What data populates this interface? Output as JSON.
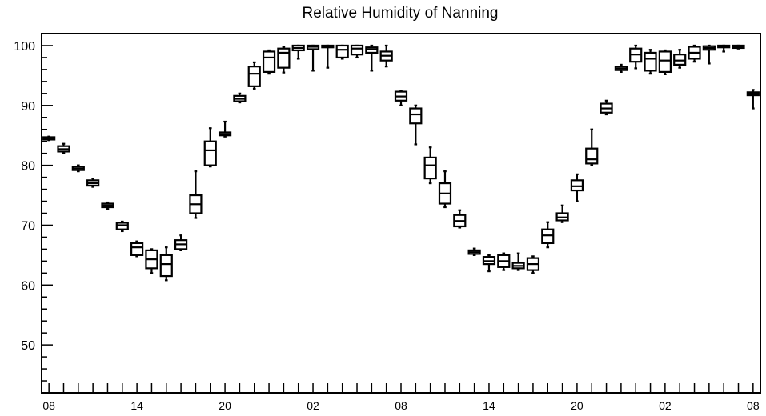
{
  "chart_data": {
    "type": "boxplot",
    "title": "Relative Humidity of Nanning",
    "xlabel": "",
    "ylabel": "",
    "ylim": [
      42,
      102
    ],
    "yticks": [
      50,
      60,
      70,
      80,
      90,
      100
    ],
    "xticklabels": [
      "08",
      "14",
      "20",
      "02",
      "08",
      "14",
      "20",
      "02",
      "08"
    ],
    "xtick_hours": [
      0,
      6,
      12,
      18,
      24,
      30,
      36,
      42,
      48
    ],
    "hour_range": [
      -0.5,
      48.5
    ],
    "grid": false,
    "legend": "none",
    "series": [
      {
        "hour": 0,
        "min": 84.2,
        "q1": 84.3,
        "median": 84.5,
        "q3": 84.7,
        "max": 84.8
      },
      {
        "hour": 1,
        "min": 82.0,
        "q1": 82.3,
        "median": 82.7,
        "q3": 83.2,
        "max": 83.6
      },
      {
        "hour": 2,
        "min": 79.0,
        "q1": 79.2,
        "median": 79.5,
        "q3": 79.8,
        "max": 80.0
      },
      {
        "hour": 3,
        "min": 76.4,
        "q1": 76.6,
        "median": 77.0,
        "q3": 77.5,
        "max": 77.8
      },
      {
        "hour": 4,
        "min": 72.7,
        "q1": 73.0,
        "median": 73.3,
        "q3": 73.6,
        "max": 73.8
      },
      {
        "hour": 5,
        "min": 69.0,
        "q1": 69.3,
        "median": 70.0,
        "q3": 70.4,
        "max": 70.6
      },
      {
        "hour": 6,
        "min": 64.8,
        "q1": 65.0,
        "median": 66.3,
        "q3": 67.0,
        "max": 67.3
      },
      {
        "hour": 7,
        "min": 62.0,
        "q1": 62.8,
        "median": 64.3,
        "q3": 65.8,
        "max": 66.0
      },
      {
        "hour": 8,
        "min": 60.8,
        "q1": 61.5,
        "median": 63.5,
        "q3": 65.0,
        "max": 66.3
      },
      {
        "hour": 9,
        "min": 65.8,
        "q1": 66.0,
        "median": 66.8,
        "q3": 67.5,
        "max": 68.3
      },
      {
        "hour": 10,
        "min": 71.2,
        "q1": 72.0,
        "median": 73.5,
        "q3": 75.0,
        "max": 79.0
      },
      {
        "hour": 11,
        "min": 79.8,
        "q1": 80.0,
        "median": 82.5,
        "q3": 84.0,
        "max": 86.2
      },
      {
        "hour": 12,
        "min": 84.8,
        "q1": 85.0,
        "median": 85.2,
        "q3": 85.5,
        "max": 87.3
      },
      {
        "hour": 13,
        "min": 90.5,
        "q1": 90.7,
        "median": 91.1,
        "q3": 91.6,
        "max": 92.0
      },
      {
        "hour": 14,
        "min": 92.8,
        "q1": 93.2,
        "median": 95.3,
        "q3": 96.5,
        "max": 97.2
      },
      {
        "hour": 15,
        "min": 95.3,
        "q1": 95.6,
        "median": 98.0,
        "q3": 99.0,
        "max": 99.2
      },
      {
        "hour": 16,
        "min": 95.5,
        "q1": 96.3,
        "median": 98.8,
        "q3": 99.5,
        "max": 99.8
      },
      {
        "hour": 17,
        "min": 97.8,
        "q1": 99.2,
        "median": 99.6,
        "q3": 100.0,
        "max": 100.0
      },
      {
        "hour": 18,
        "min": 95.8,
        "q1": 99.4,
        "median": 99.8,
        "q3": 100.0,
        "max": 100.0
      },
      {
        "hour": 19,
        "min": 96.3,
        "q1": 99.7,
        "median": 99.9,
        "q3": 100.0,
        "max": 100.0
      },
      {
        "hour": 20,
        "min": 97.8,
        "q1": 98.0,
        "median": 99.3,
        "q3": 100.0,
        "max": 100.0
      },
      {
        "hour": 21,
        "min": 98.0,
        "q1": 98.5,
        "median": 99.5,
        "q3": 100.0,
        "max": 100.0
      },
      {
        "hour": 22,
        "min": 95.8,
        "q1": 98.8,
        "median": 99.4,
        "q3": 99.7,
        "max": 100.0
      },
      {
        "hour": 23,
        "min": 96.5,
        "q1": 97.5,
        "median": 98.3,
        "q3": 99.0,
        "max": 100.0
      },
      {
        "hour": 24,
        "min": 90.0,
        "q1": 90.8,
        "median": 91.5,
        "q3": 92.3,
        "max": 92.5
      },
      {
        "hour": 25,
        "min": 83.5,
        "q1": 87.0,
        "median": 88.5,
        "q3": 89.5,
        "max": 90.0
      },
      {
        "hour": 26,
        "min": 77.0,
        "q1": 77.8,
        "median": 80.0,
        "q3": 81.3,
        "max": 83.0
      },
      {
        "hour": 27,
        "min": 73.0,
        "q1": 73.6,
        "median": 75.3,
        "q3": 77.0,
        "max": 79.0
      },
      {
        "hour": 28,
        "min": 69.6,
        "q1": 69.8,
        "median": 70.7,
        "q3": 71.7,
        "max": 72.5
      },
      {
        "hour": 29,
        "min": 65.0,
        "q1": 65.2,
        "median": 65.5,
        "q3": 65.8,
        "max": 66.1
      },
      {
        "hour": 30,
        "min": 62.3,
        "q1": 63.5,
        "median": 64.0,
        "q3": 64.7,
        "max": 65.0
      },
      {
        "hour": 31,
        "min": 62.5,
        "q1": 63.0,
        "median": 64.0,
        "q3": 65.0,
        "max": 65.3
      },
      {
        "hour": 32,
        "min": 62.5,
        "q1": 62.8,
        "median": 63.2,
        "q3": 63.7,
        "max": 65.3
      },
      {
        "hour": 33,
        "min": 62.0,
        "q1": 62.5,
        "median": 63.5,
        "q3": 64.5,
        "max": 64.8
      },
      {
        "hour": 34,
        "min": 66.3,
        "q1": 67.0,
        "median": 68.3,
        "q3": 69.3,
        "max": 70.5
      },
      {
        "hour": 35,
        "min": 70.5,
        "q1": 70.8,
        "median": 71.3,
        "q3": 72.0,
        "max": 73.3
      },
      {
        "hour": 36,
        "min": 74.0,
        "q1": 75.8,
        "median": 76.5,
        "q3": 77.5,
        "max": 78.5
      },
      {
        "hour": 37,
        "min": 80.0,
        "q1": 80.3,
        "median": 81.0,
        "q3": 82.8,
        "max": 86.0
      },
      {
        "hour": 38,
        "min": 88.5,
        "q1": 88.8,
        "median": 89.5,
        "q3": 90.3,
        "max": 90.8
      },
      {
        "hour": 39,
        "min": 95.6,
        "q1": 95.9,
        "median": 96.2,
        "q3": 96.5,
        "max": 96.8
      },
      {
        "hour": 40,
        "min": 96.2,
        "q1": 97.3,
        "median": 98.5,
        "q3": 99.5,
        "max": 100.0
      },
      {
        "hour": 41,
        "min": 95.3,
        "q1": 95.8,
        "median": 97.8,
        "q3": 98.8,
        "max": 99.3
      },
      {
        "hour": 42,
        "min": 95.2,
        "q1": 95.6,
        "median": 97.5,
        "q3": 99.0,
        "max": 99.2
      },
      {
        "hour": 43,
        "min": 96.3,
        "q1": 96.8,
        "median": 97.5,
        "q3": 98.5,
        "max": 99.3
      },
      {
        "hour": 44,
        "min": 97.3,
        "q1": 97.8,
        "median": 98.8,
        "q3": 99.8,
        "max": 100.0
      },
      {
        "hour": 45,
        "min": 97.0,
        "q1": 99.3,
        "median": 99.6,
        "q3": 99.9,
        "max": 100.0
      },
      {
        "hour": 46,
        "min": 99.0,
        "q1": 99.7,
        "median": 99.9,
        "q3": 100.0,
        "max": 100.0
      },
      {
        "hour": 47,
        "min": 99.5,
        "q1": 99.6,
        "median": 99.8,
        "q3": 100.0,
        "max": 100.0
      },
      {
        "hour": 48,
        "min": 89.5,
        "q1": 91.7,
        "median": 92.0,
        "q3": 92.2,
        "max": 92.6
      }
    ]
  }
}
